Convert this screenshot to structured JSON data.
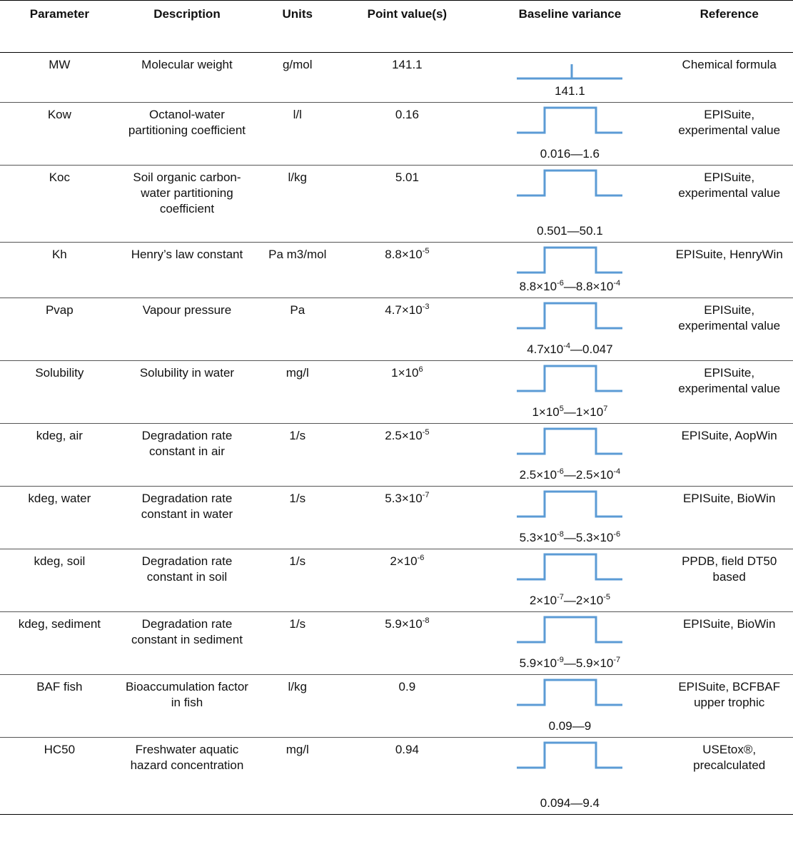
{
  "headers": {
    "parameter": "Parameter",
    "description": "Description",
    "units": "Units",
    "point": "Point value(s)",
    "variance": "Baseline variance",
    "reference": "Reference"
  },
  "shape_color": "#5b9bd5",
  "rows": [
    {
      "parameter": "MW",
      "description": "Molecular weight",
      "units": "g/mol",
      "point": "141.1",
      "range": "141.1",
      "distribution": "point",
      "reference": "Chemical formula"
    },
    {
      "parameter": "Kow",
      "description": "Octanol-water partitioning coefficient",
      "units": "l/l",
      "point": "0.16",
      "range": "0.016—1.6",
      "distribution": "uniform",
      "reference": "EPISuite, experimental value"
    },
    {
      "parameter": "Koc",
      "description": "Soil organic carbon-water partitioning coefficient",
      "units": "l/kg",
      "point": "5.01",
      "range": "0.501—50.1",
      "distribution": "uniform",
      "reference": "EPISuite, experimental value"
    },
    {
      "parameter": "Kh",
      "description": "Henry’s law constant",
      "units": "Pa m3/mol",
      "point": "8.8×10<sup>-5</sup>",
      "range": "8.8×10<sup>-6</sup>—8.8×10<sup>-4</sup>",
      "distribution": "uniform",
      "reference": "EPISuite, HenryWin"
    },
    {
      "parameter": "Pvap",
      "description": "Vapour pressure",
      "units": "Pa",
      "point": "4.7×10<sup>-3</sup>",
      "range": "4.7x10<sup>-4</sup>—0.047",
      "distribution": "uniform",
      "reference": "EPISuite, experimental value"
    },
    {
      "parameter": "Solubility",
      "description": "Solubility in water",
      "units": "mg/l",
      "point": "1×10<sup>6</sup>",
      "range": "1×10<sup>5</sup>—1×10<sup>7</sup>",
      "distribution": "uniform",
      "reference": "EPISuite, experimental value"
    },
    {
      "parameter": "kdeg, air",
      "description": "Degradation rate constant in air",
      "units": "1/s",
      "point": "2.5×10<sup>-5</sup>",
      "range": "2.5×10<sup>-6</sup>—2.5×10<sup>-4</sup>",
      "distribution": "uniform",
      "reference": "EPISuite, AopWin"
    },
    {
      "parameter": "kdeg, water",
      "description": "Degradation rate constant in water",
      "units": "1/s",
      "point": "5.3×10<sup>-7</sup>",
      "range": "5.3×10<sup>-8</sup>—5.3×10<sup>-6</sup>",
      "distribution": "uniform",
      "reference": "EPISuite, BioWin"
    },
    {
      "parameter": "kdeg, soil",
      "description": "Degradation rate constant in soil",
      "units": "1/s",
      "point": "2×10<sup>-6</sup>",
      "range": "2×10<sup>-7</sup>—2×10<sup>-5</sup>",
      "distribution": "uniform",
      "reference": "PPDB, field DT50 based"
    },
    {
      "parameter": "kdeg, sediment",
      "description": "Degradation rate constant in sediment",
      "units": "1/s",
      "point": "5.9×10<sup>-8</sup>",
      "range": "5.9×10<sup>-9</sup>—5.9×10<sup>-7</sup>",
      "distribution": "uniform",
      "reference": "EPISuite, BioWin"
    },
    {
      "parameter": "BAF fish",
      "description": "Bioaccumulation factor in fish",
      "units": "l/kg",
      "point": "0.9",
      "range": "0.09—9",
      "distribution": "uniform",
      "reference": "EPISuite, BCFBAF upper trophic"
    },
    {
      "parameter": "HC50",
      "description": "Freshwater aquatic hazard concentration",
      "units": "mg/l",
      "point": "0.94",
      "range": "0.094—9.4",
      "distribution": "uniform",
      "reference": "USEtox®, precalculated"
    }
  ]
}
